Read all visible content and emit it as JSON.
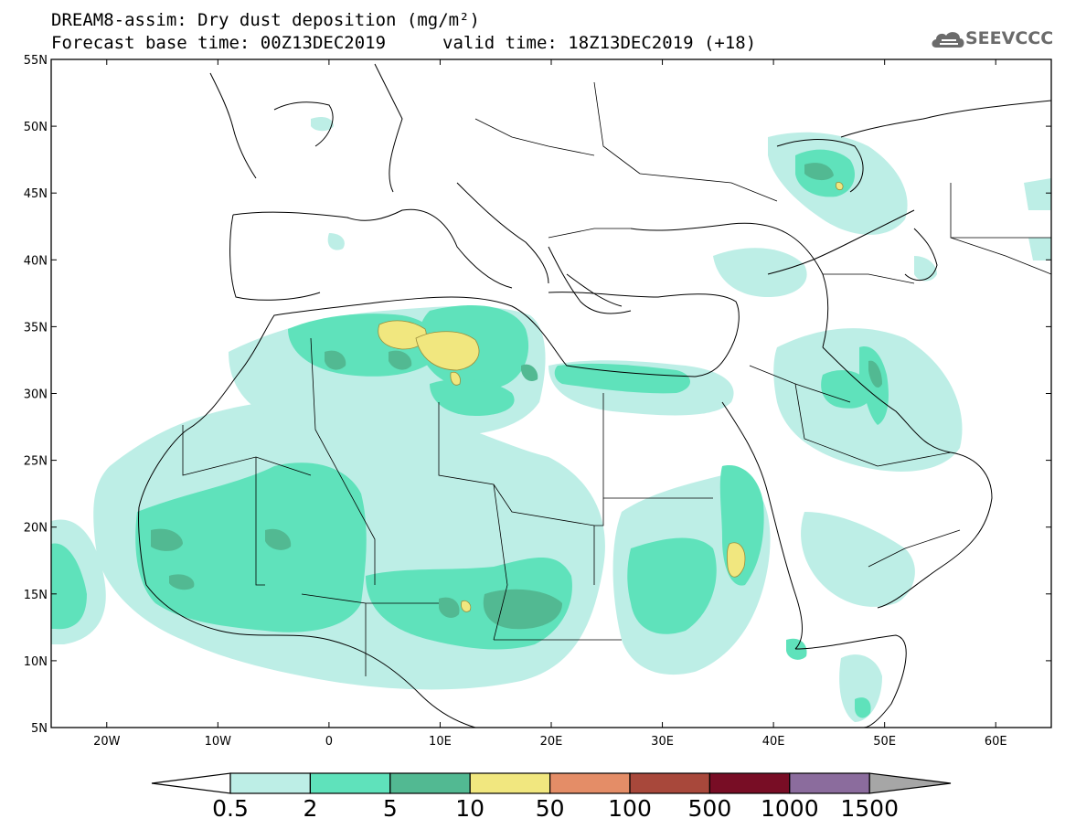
{
  "header": {
    "title": "DREAM8-assim: Dry dust deposition (mg/m²)",
    "base_time": "Forecast base time: 00Z13DEC2019",
    "valid_time": "valid time: 18Z13DEC2019 (+18)",
    "logo_text": "SEEVCCC"
  },
  "map": {
    "lat_range": [
      5,
      55
    ],
    "lon_range": [
      -25,
      65
    ],
    "lat_ticks": [
      {
        "value": 55,
        "label": "55N"
      },
      {
        "value": 50,
        "label": "50N"
      },
      {
        "value": 45,
        "label": "45N"
      },
      {
        "value": 40,
        "label": "40N"
      },
      {
        "value": 35,
        "label": "35N"
      },
      {
        "value": 30,
        "label": "30N"
      },
      {
        "value": 25,
        "label": "25N"
      },
      {
        "value": 20,
        "label": "20N"
      },
      {
        "value": 15,
        "label": "15N"
      },
      {
        "value": 10,
        "label": "10N"
      },
      {
        "value": 5,
        "label": "5N"
      }
    ],
    "lon_ticks": [
      {
        "value": -20,
        "label": "20W"
      },
      {
        "value": -10,
        "label": "10W"
      },
      {
        "value": 0,
        "label": "0"
      },
      {
        "value": 10,
        "label": "10E"
      },
      {
        "value": 20,
        "label": "20E"
      },
      {
        "value": 30,
        "label": "30E"
      },
      {
        "value": 40,
        "label": "40E"
      },
      {
        "value": 50,
        "label": "50E"
      },
      {
        "value": 60,
        "label": "60E"
      }
    ]
  },
  "colorbar": {
    "labels": [
      "0.5",
      "2",
      "5",
      "10",
      "50",
      "100",
      "500",
      "1000",
      "1500"
    ],
    "colors": [
      "#bdeee6",
      "#5fe2bb",
      "#52b992",
      "#f1e77f",
      "#e48d67",
      "#a8483b",
      "#780d25",
      "#8b6c9d",
      "#a6a6a6"
    ]
  }
}
